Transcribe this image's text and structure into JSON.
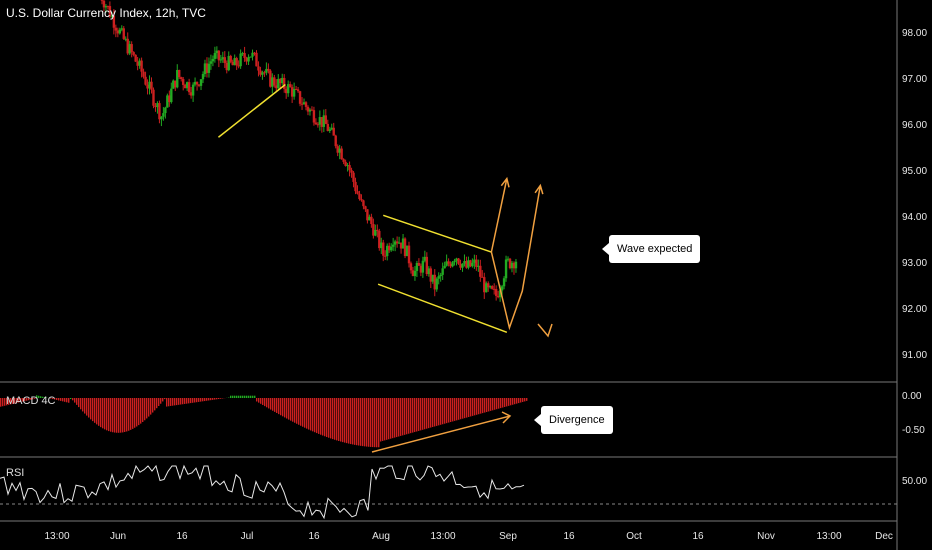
{
  "header": {
    "title": "U.S. Dollar Currency Index, 12h, TVC"
  },
  "annotations": {
    "wave": "Wave expected",
    "divergence": "Divergence"
  },
  "panes": {
    "macd_label": "MACD 4C",
    "rsi_label": "RSI"
  },
  "colors": {
    "up": "#22aa22",
    "down": "#cc2020",
    "trend": "#f0e030",
    "arrow": "#f0a040",
    "bg": "#000000"
  },
  "chart_data": {
    "type": "candlestick",
    "y_ticks": [
      "98.00",
      "97.00",
      "96.00",
      "95.00",
      "94.00",
      "93.00",
      "92.00",
      "91.00"
    ],
    "macd_ticks": [
      "0.00",
      "-0.50"
    ],
    "rsi_ticks": [
      "50.00"
    ],
    "x_ticks": [
      "13:00",
      "Jun",
      "16",
      "Jul",
      "16",
      "Aug",
      "13:00",
      "Sep",
      "16",
      "Oct",
      "16",
      "Nov",
      "13:00",
      "Dec"
    ],
    "price_path": [
      [
        0,
        98.9
      ],
      [
        4,
        98.0
      ],
      [
        8,
        97.2
      ],
      [
        12,
        96.2
      ],
      [
        15,
        97.1
      ],
      [
        18,
        96.8
      ],
      [
        22,
        97.5
      ],
      [
        26,
        97.3
      ],
      [
        29,
        97.6
      ],
      [
        33,
        97.0
      ],
      [
        37,
        96.8
      ],
      [
        41,
        96.3
      ],
      [
        44,
        96.0
      ],
      [
        48,
        95.2
      ],
      [
        51,
        94.2
      ],
      [
        53,
        93.8
      ],
      [
        55,
        93.2
      ],
      [
        57,
        93.6
      ],
      [
        59,
        93.4
      ],
      [
        61,
        92.8
      ],
      [
        63,
        93.0
      ],
      [
        65,
        92.5
      ],
      [
        67,
        92.9
      ],
      [
        69,
        93.2
      ],
      [
        71,
        92.9
      ],
      [
        73,
        93.0
      ],
      [
        75,
        92.4
      ],
      [
        77,
        92.3
      ],
      [
        79,
        93.0
      ],
      [
        81,
        93.1
      ]
    ],
    "channel_upper": [
      [
        55,
        94.05
      ],
      [
        76,
        93.25
      ]
    ],
    "channel_lower": [
      [
        54,
        92.55
      ],
      [
        79,
        91.5
      ]
    ],
    "early_trend": [
      [
        23,
        95.75
      ],
      [
        36,
        96.9
      ]
    ],
    "projections": [
      [
        [
          76,
          93.25
        ],
        [
          79,
          94.85
        ]
      ],
      [
        [
          76,
          93.25
        ],
        [
          79.5,
          91.6
        ],
        [
          82,
          92.4
        ],
        [
          85.5,
          94.7
        ]
      ]
    ]
  }
}
